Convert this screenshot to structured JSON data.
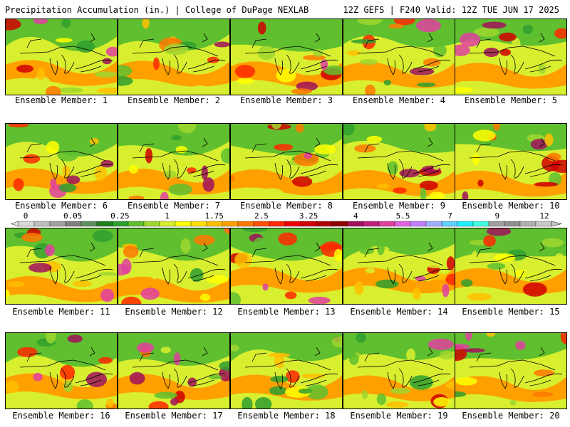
{
  "header": {
    "left_title": "Precipitation Accumulation (in.) | College of DuPage NEXLAB",
    "right_title": "12Z GEFS | F240 Valid: 12Z TUE JUN 17 2025"
  },
  "panels": [
    {
      "label": "Ensemble Member: 1"
    },
    {
      "label": "Ensemble Member: 2"
    },
    {
      "label": "Ensemble Member: 3"
    },
    {
      "label": "Ensemble Member: 4"
    },
    {
      "label": "Ensemble Member: 5"
    },
    {
      "label": "Ensemble Member: 6"
    },
    {
      "label": "Ensemble Member: 7"
    },
    {
      "label": "Ensemble Member: 8"
    },
    {
      "label": "Ensemble Member: 9"
    },
    {
      "label": "Ensemble Member: 10"
    },
    {
      "label": "Ensemble Member: 11"
    },
    {
      "label": "Ensemble Member: 12"
    },
    {
      "label": "Ensemble Member: 13"
    },
    {
      "label": "Ensemble Member: 14"
    },
    {
      "label": "Ensemble Member: 15"
    },
    {
      "label": "Ensemble Member: 16"
    },
    {
      "label": "Ensemble Member: 17"
    },
    {
      "label": "Ensemble Member: 18"
    },
    {
      "label": "Ensemble Member: 19"
    },
    {
      "label": "Ensemble Member: 20"
    }
  ],
  "colorbar": {
    "tick_labels": [
      "0",
      "0.05",
      "0.25",
      "1",
      "1.75",
      "2.5",
      "3.25",
      "4",
      "5.5",
      "7",
      "9",
      "12"
    ],
    "colors": [
      "#d9d9d9",
      "#bdbdbd",
      "#a0a0a0",
      "#7f7f7f",
      "#5f8f5f",
      "#1f7f1f",
      "#2f9f2f",
      "#5fbf2f",
      "#9fd62f",
      "#d8ef2f",
      "#ffff00",
      "#ffe000",
      "#ffc000",
      "#ffa000",
      "#ff7800",
      "#ff5000",
      "#ff2800",
      "#f00000",
      "#d00000",
      "#b00000",
      "#900000",
      "#a0105a",
      "#c0207a",
      "#e040a0",
      "#e060e0",
      "#c080ff",
      "#9fb0ff",
      "#60d0ff",
      "#20f0ff",
      "#40ffe0",
      "#a0a0a0",
      "#909090",
      "#b0b0b0",
      "#c8c8c8"
    ]
  }
}
